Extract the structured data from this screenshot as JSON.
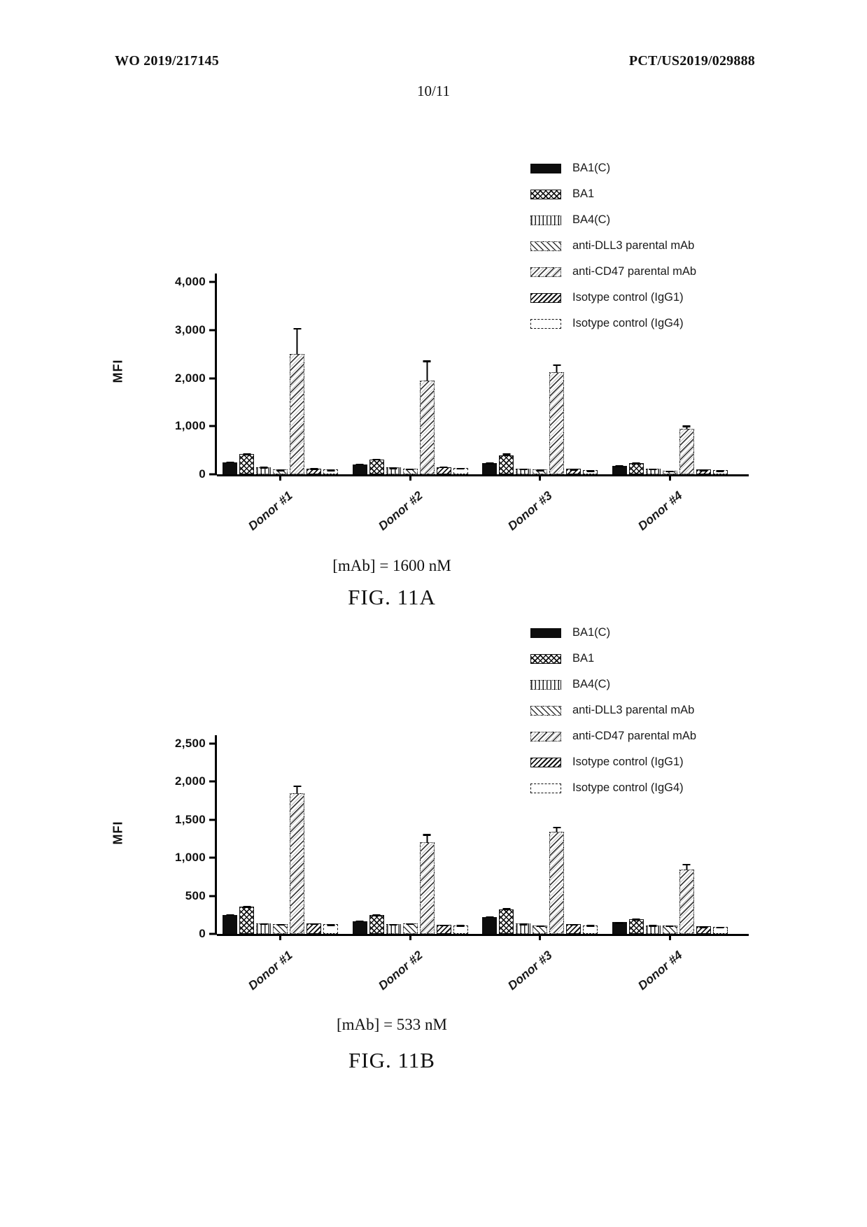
{
  "page": {
    "header_left": "WO 2019/217145",
    "header_right": "PCT/US2019/029888",
    "page_number": "10/11"
  },
  "chart_data": [
    {
      "id": "figA",
      "type": "bar",
      "title": "FIG. 11A",
      "caption": "[mAb] = 1600 nM",
      "ylabel": "MFI",
      "ylim": [
        0,
        4000
      ],
      "yticks": [
        "0",
        "1,000",
        "2,000",
        "3,000",
        "4,000"
      ],
      "grid": false,
      "legend_position": "top-right",
      "categories": [
        "Donor #1",
        "Donor #2",
        "Donor #3",
        "Donor #4"
      ],
      "series": [
        {
          "name": "BA1(C)",
          "pattern": "solid",
          "values": [
            250,
            210,
            230,
            180
          ],
          "errors": [
            30,
            25,
            25,
            20
          ]
        },
        {
          "name": "BA1",
          "pattern": "cross",
          "values": [
            420,
            300,
            400,
            230
          ],
          "errors": [
            30,
            40,
            45,
            25
          ]
        },
        {
          "name": "BA4(C)",
          "pattern": "vdash",
          "values": [
            150,
            140,
            120,
            120
          ],
          "errors": [
            20,
            20,
            15,
            15
          ]
        },
        {
          "name": "anti-DLL3 parental mAb",
          "pattern": "diag",
          "values": [
            100,
            120,
            100,
            80
          ],
          "errors": [
            15,
            15,
            15,
            10
          ]
        },
        {
          "name": "anti-CD47 parental mAb",
          "pattern": "cd47",
          "values": [
            2500,
            1950,
            2130,
            950
          ],
          "errors": [
            560,
            430,
            170,
            80
          ]
        },
        {
          "name": "Isotype control (IgG1)",
          "pattern": "dense",
          "values": [
            120,
            150,
            110,
            100
          ],
          "errors": [
            20,
            25,
            15,
            15
          ]
        },
        {
          "name": "Isotype control (IgG4)",
          "pattern": "open",
          "values": [
            100,
            130,
            90,
            90
          ],
          "errors": [
            15,
            20,
            10,
            10
          ]
        }
      ]
    },
    {
      "id": "figB",
      "type": "bar",
      "title": "FIG. 11B",
      "caption": "[mAb] = 533 nM",
      "ylabel": "MFI",
      "ylim": [
        0,
        2500
      ],
      "yticks": [
        "0",
        "500",
        "1,000",
        "1,500",
        "2,000",
        "2,500"
      ],
      "grid": false,
      "legend_position": "top-right",
      "categories": [
        "Donor #1",
        "Donor #2",
        "Donor #3",
        "Donor #4"
      ],
      "series": [
        {
          "name": "BA1(C)",
          "pattern": "solid",
          "values": [
            250,
            170,
            220,
            155
          ],
          "errors": [
            20,
            15,
            20,
            10
          ]
        },
        {
          "name": "BA1",
          "pattern": "cross",
          "values": [
            360,
            250,
            320,
            195
          ],
          "errors": [
            15,
            15,
            25,
            15
          ]
        },
        {
          "name": "BA4(C)",
          "pattern": "vdash",
          "values": [
            140,
            130,
            135,
            115
          ],
          "errors": [
            10,
            10,
            10,
            10
          ]
        },
        {
          "name": "anti-DLL3 parental mAb",
          "pattern": "diag",
          "values": [
            130,
            140,
            110,
            110
          ],
          "errors": [
            10,
            10,
            10,
            10
          ]
        },
        {
          "name": "anti-CD47 parental mAb",
          "pattern": "cd47",
          "values": [
            1850,
            1200,
            1340,
            850
          ],
          "errors": [
            110,
            120,
            80,
            80
          ]
        },
        {
          "name": "Isotype control (IgG1)",
          "pattern": "dense",
          "values": [
            140,
            120,
            130,
            100
          ],
          "errors": [
            10,
            10,
            10,
            10
          ]
        },
        {
          "name": "Isotype control (IgG4)",
          "pattern": "open",
          "values": [
            125,
            115,
            115,
            95
          ],
          "errors": [
            10,
            10,
            10,
            10
          ]
        }
      ]
    }
  ]
}
